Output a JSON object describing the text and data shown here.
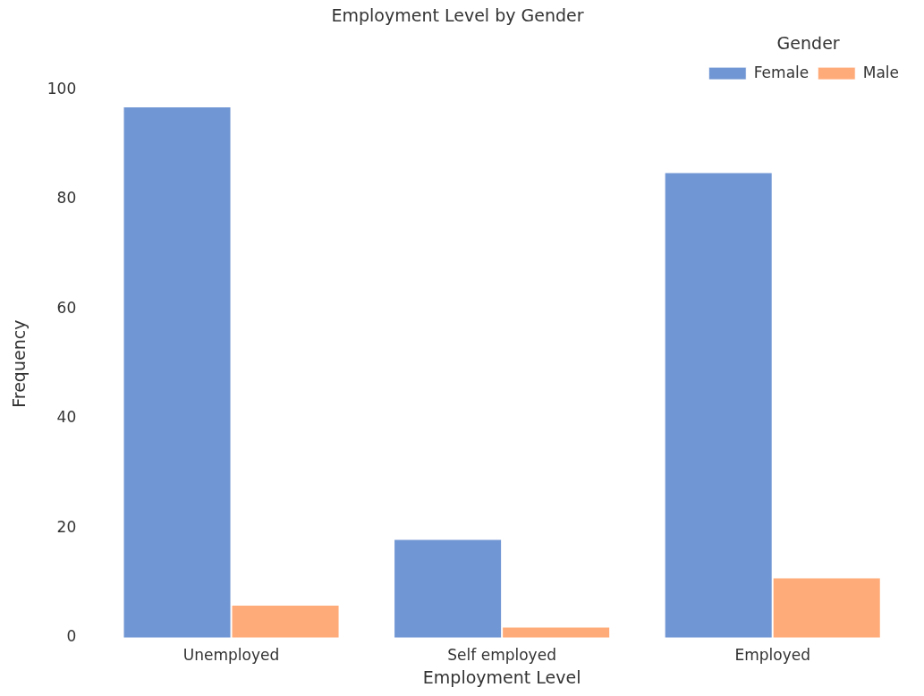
{
  "chart_data": {
    "type": "bar",
    "title": "Employment Level by Gender",
    "xlabel": "Employment Level",
    "ylabel": "Frequency",
    "legend_title": "Gender",
    "categories": [
      "Unemployed",
      "Self employed",
      "Employed"
    ],
    "series": [
      {
        "name": "Female",
        "color": "#7096d3",
        "values": [
          97,
          18,
          85
        ]
      },
      {
        "name": "Male",
        "color": "#ffab79",
        "values": [
          6,
          2,
          11
        ]
      }
    ],
    "ylim": [
      0,
      100
    ],
    "yticks": [
      0,
      20,
      40,
      60,
      80,
      100
    ],
    "grid": false,
    "legend": "top right"
  }
}
